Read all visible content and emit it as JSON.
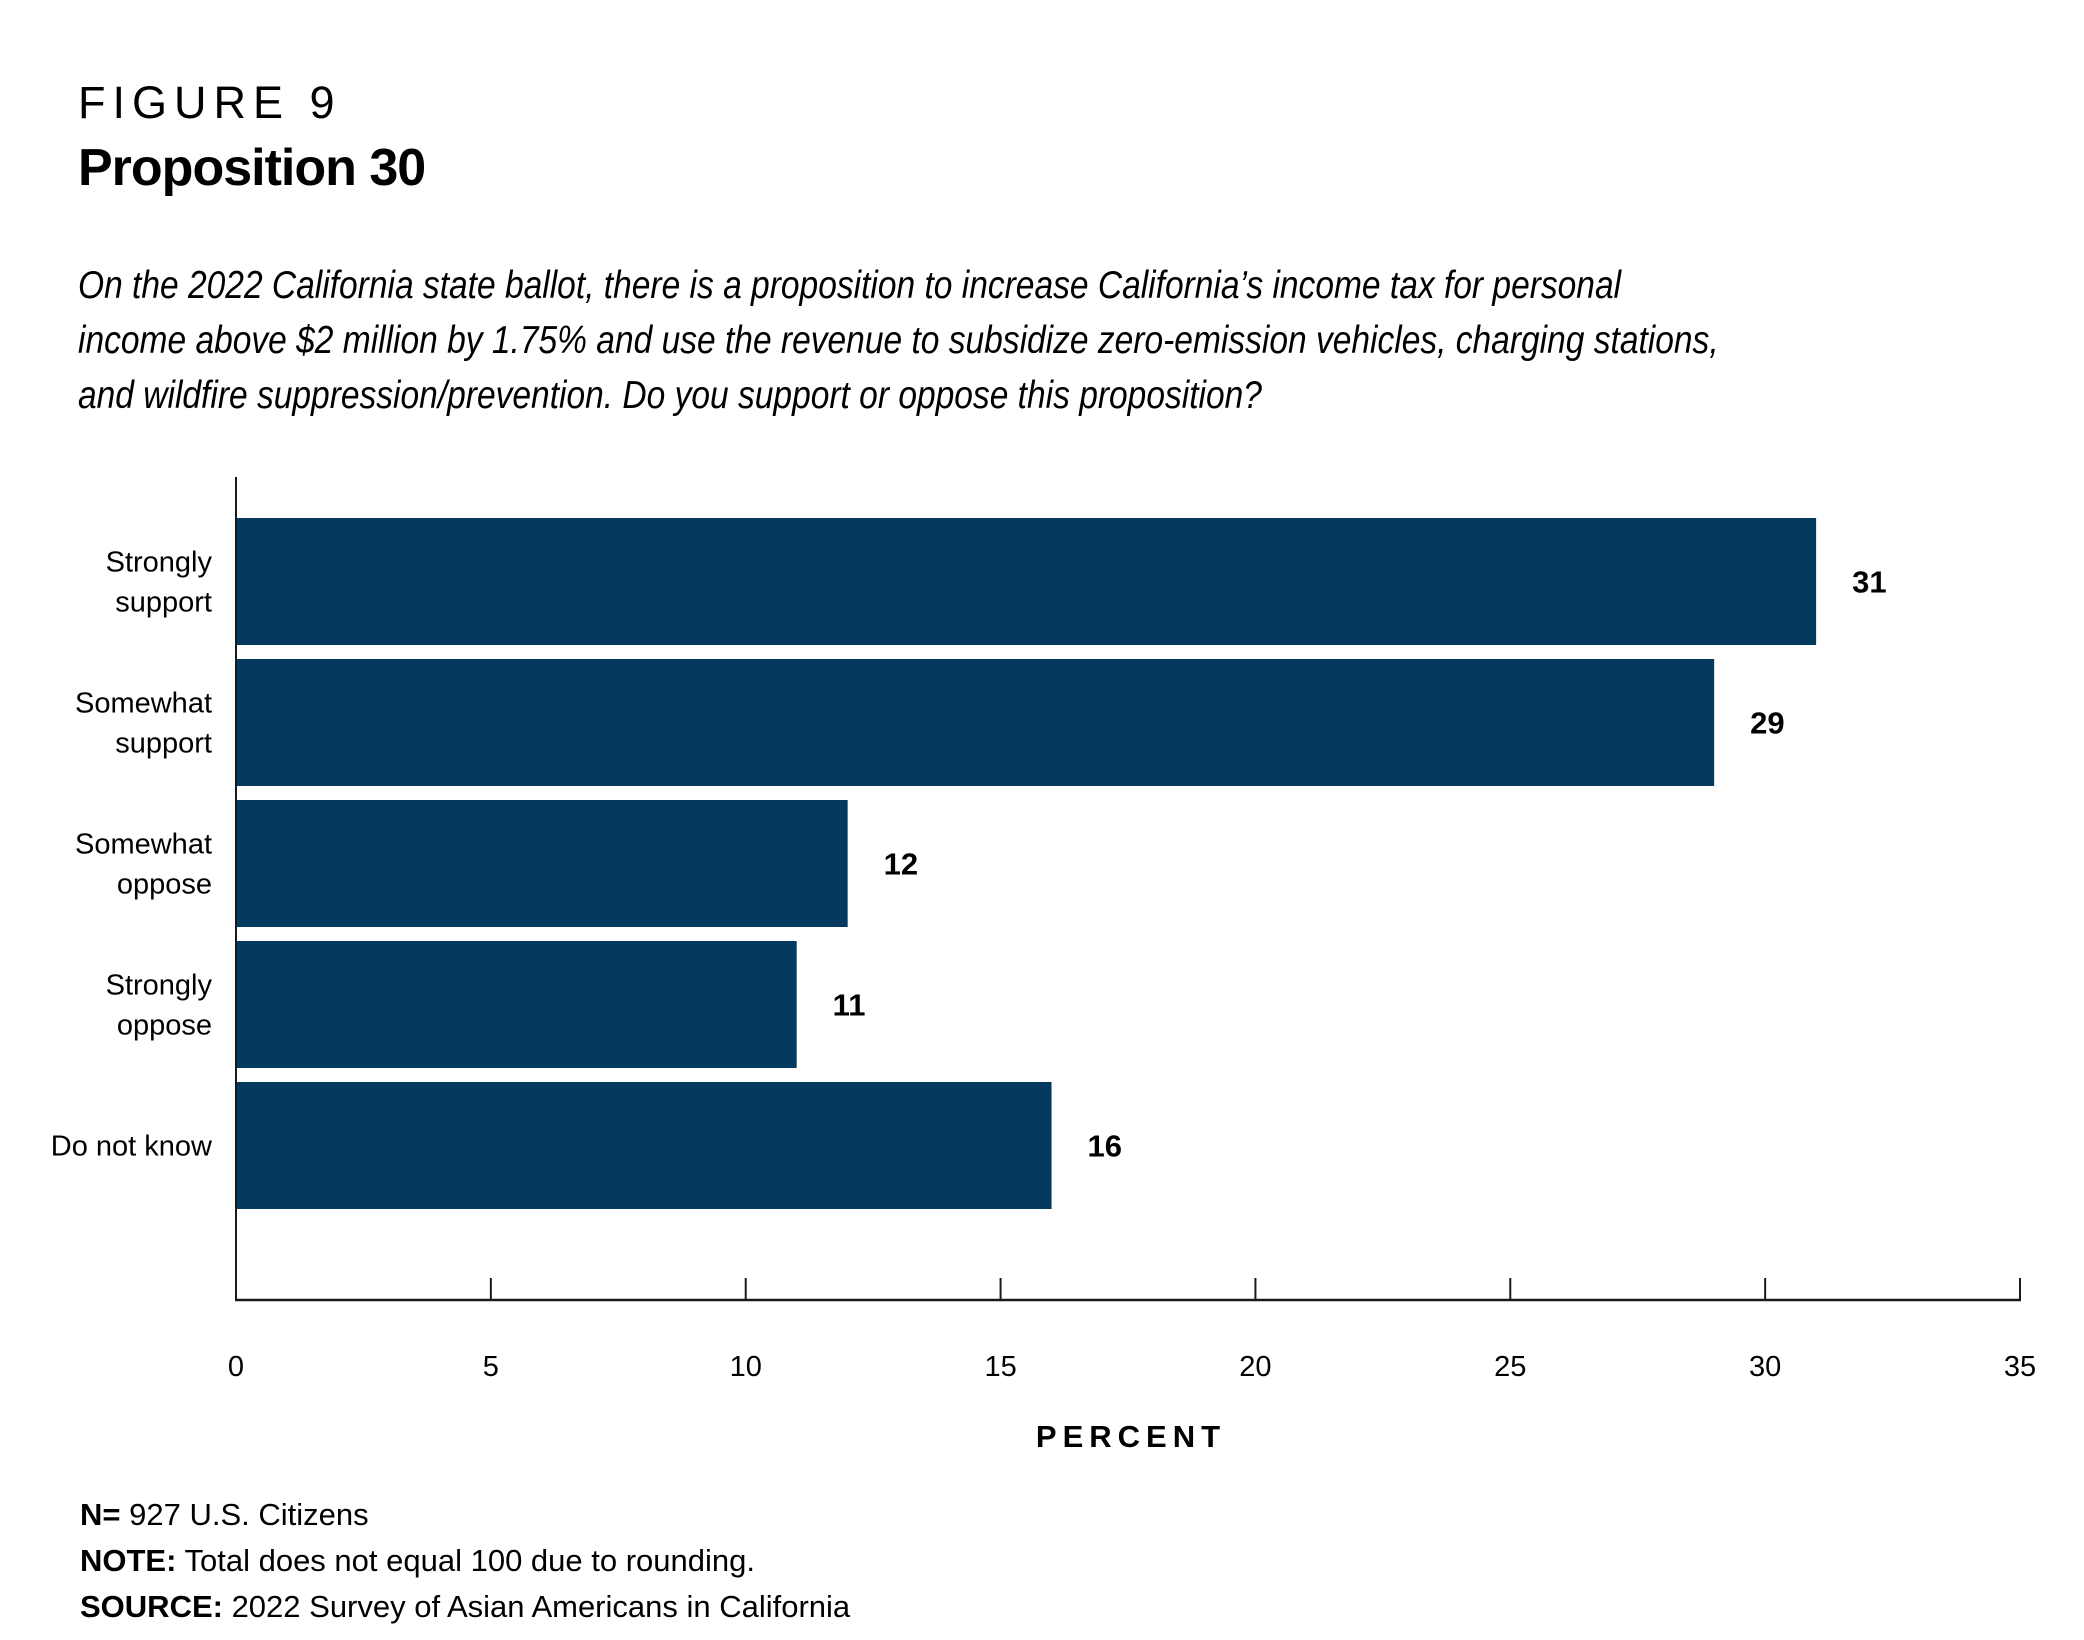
{
  "figure": {
    "label": "FIGURE 9",
    "title": "Proposition 30",
    "question_lines": [
      "On the 2022 California state ballot, there is a proposition to increase California’s income tax for personal",
      "income above $2 million by 1.75% and use the revenue to subsidize zero-emission vehicles, charging stations,",
      "and wildfire suppression/prevention. Do you support or oppose this proposition?"
    ]
  },
  "chart_data": {
    "type": "bar",
    "orientation": "horizontal",
    "title": "Proposition 30",
    "categories": [
      [
        "Strongly",
        "support"
      ],
      [
        "Somewhat",
        "support"
      ],
      [
        "Somewhat",
        "oppose"
      ],
      [
        "Strongly",
        "oppose"
      ],
      [
        "Do not know"
      ]
    ],
    "category_names": [
      "Strongly support",
      "Somewhat support",
      "Somewhat oppose",
      "Strongly oppose",
      "Do not know"
    ],
    "values": [
      31,
      29,
      12,
      11,
      16
    ],
    "xlabel": "PERCENT",
    "ylabel": "",
    "xlim": [
      0,
      35
    ],
    "xticks": [
      0,
      5,
      10,
      15,
      20,
      25,
      30,
      35
    ],
    "grid": false,
    "legend": "none",
    "bar_color": "#053A60"
  },
  "footnotes": [
    {
      "label": "N=",
      "text": " 927 U.S. Citizens"
    },
    {
      "label": "NOTE:",
      "text": " Total does not equal 100 due to rounding."
    },
    {
      "label": "SOURCE:",
      "text": " 2022 Survey of Asian Americans in California"
    }
  ]
}
